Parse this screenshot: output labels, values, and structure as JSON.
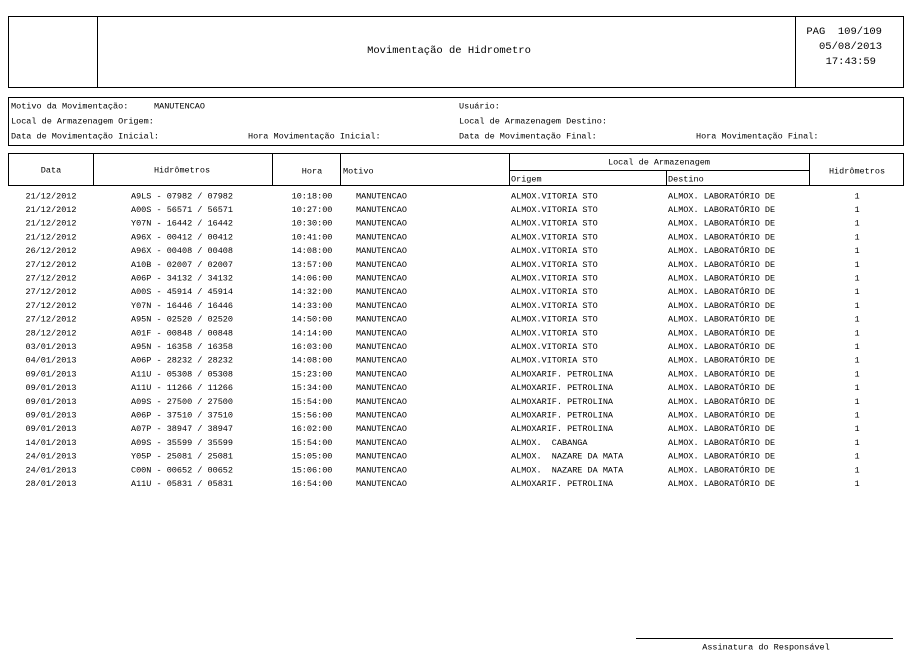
{
  "header": {
    "title": "Movimentação de Hidrometro",
    "page": "PAG  109/109",
    "date": "05/08/2013",
    "time": "17:43:59"
  },
  "filters": {
    "motivo": {
      "label": "Motivo da Movimentação:",
      "value": "MANUTENCAO"
    },
    "usuario": "Usuário:",
    "origem": "Local de Armazenagem Origem:",
    "destino": "Local de Armazenagem Destino:",
    "data_inicial": "Data de Movimentação Inicial:",
    "hora_inicial": "Hora Movimentação Inicial:",
    "data_final": "Data de Movimentação Final:",
    "hora_final": "Hora Movimentação Final:"
  },
  "table": {
    "columns": {
      "data": "Data",
      "hidrometros": "Hidrômetros",
      "hora": "Hora",
      "motivo": "Motivo",
      "local": "Local de Armazenagem",
      "origem": "Origem",
      "destino": "Destino",
      "quantidade": "Hidrômetros"
    },
    "rows": [
      [
        "21/12/2012",
        "A9LS - 07982 / 07982",
        "10:18:00",
        "MANUTENCAO",
        "ALMOX.VITORIA STO",
        "ALMOX. LABORATÓRIO DE",
        "1"
      ],
      [
        "21/12/2012",
        "A00S - 56571 / 56571",
        "10:27:00",
        "MANUTENCAO",
        "ALMOX.VITORIA STO",
        "ALMOX. LABORATÓRIO DE",
        "1"
      ],
      [
        "21/12/2012",
        "Y07N - 16442 / 16442",
        "10:30:00",
        "MANUTENCAO",
        "ALMOX.VITORIA STO",
        "ALMOX. LABORATÓRIO DE",
        "1"
      ],
      [
        "21/12/2012",
        "A96X - 00412 / 00412",
        "10:41:00",
        "MANUTENCAO",
        "ALMOX.VITORIA STO",
        "ALMOX. LABORATÓRIO DE",
        "1"
      ],
      [
        "26/12/2012",
        "A96X - 00408 / 00408",
        "14:08:00",
        "MANUTENCAO",
        "ALMOX.VITORIA STO",
        "ALMOX. LABORATÓRIO DE",
        "1"
      ],
      [
        "27/12/2012",
        "A10B - 02007 / 02007",
        "13:57:00",
        "MANUTENCAO",
        "ALMOX.VITORIA STO",
        "ALMOX. LABORATÓRIO DE",
        "1"
      ],
      [
        "27/12/2012",
        "A06P - 34132 / 34132",
        "14:06:00",
        "MANUTENCAO",
        "ALMOX.VITORIA STO",
        "ALMOX. LABORATÓRIO DE",
        "1"
      ],
      [
        "27/12/2012",
        "A00S - 45914 / 45914",
        "14:32:00",
        "MANUTENCAO",
        "ALMOX.VITORIA STO",
        "ALMOX. LABORATÓRIO DE",
        "1"
      ],
      [
        "27/12/2012",
        "Y07N - 16446 / 16446",
        "14:33:00",
        "MANUTENCAO",
        "ALMOX.VITORIA STO",
        "ALMOX. LABORATÓRIO DE",
        "1"
      ],
      [
        "27/12/2012",
        "A95N - 02520 / 02520",
        "14:50:00",
        "MANUTENCAO",
        "ALMOX.VITORIA STO",
        "ALMOX. LABORATÓRIO DE",
        "1"
      ],
      [
        "28/12/2012",
        "A01F - 00848 / 00848",
        "14:14:00",
        "MANUTENCAO",
        "ALMOX.VITORIA STO",
        "ALMOX. LABORATÓRIO DE",
        "1"
      ],
      [
        "03/01/2013",
        "A95N - 16358 / 16358",
        "16:03:00",
        "MANUTENCAO",
        "ALMOX.VITORIA STO",
        "ALMOX. LABORATÓRIO DE",
        "1"
      ],
      [
        "04/01/2013",
        "A06P - 28232 / 28232",
        "14:08:00",
        "MANUTENCAO",
        "ALMOX.VITORIA STO",
        "ALMOX. LABORATÓRIO DE",
        "1"
      ],
      [
        "09/01/2013",
        "A11U - 05308 / 05308",
        "15:23:00",
        "MANUTENCAO",
        "ALMOXARIF. PETROLINA",
        "ALMOX. LABORATÓRIO DE",
        "1"
      ],
      [
        "09/01/2013",
        "A11U - 11266 / 11266",
        "15:34:00",
        "MANUTENCAO",
        "ALMOXARIF. PETROLINA",
        "ALMOX. LABORATÓRIO DE",
        "1"
      ],
      [
        "09/01/2013",
        "A09S - 27500 / 27500",
        "15:54:00",
        "MANUTENCAO",
        "ALMOXARIF. PETROLINA",
        "ALMOX. LABORATÓRIO DE",
        "1"
      ],
      [
        "09/01/2013",
        "A06P - 37510 / 37510",
        "15:56:00",
        "MANUTENCAO",
        "ALMOXARIF. PETROLINA",
        "ALMOX. LABORATÓRIO DE",
        "1"
      ],
      [
        "09/01/2013",
        "A07P - 38947 / 38947",
        "16:02:00",
        "MANUTENCAO",
        "ALMOXARIF. PETROLINA",
        "ALMOX. LABORATÓRIO DE",
        "1"
      ],
      [
        "14/01/2013",
        "A09S - 35599 / 35599",
        "15:54:00",
        "MANUTENCAO",
        "ALMOX.  CABANGA",
        "ALMOX. LABORATÓRIO DE",
        "1"
      ],
      [
        "24/01/2013",
        "Y05P - 25081 / 25081",
        "15:05:00",
        "MANUTENCAO",
        "ALMOX.  NAZARE DA MATA",
        "ALMOX. LABORATÓRIO DE",
        "1"
      ],
      [
        "24/01/2013",
        "C00N - 00652 / 00652",
        "15:06:00",
        "MANUTENCAO",
        "ALMOX.  NAZARE DA MATA",
        "ALMOX. LABORATÓRIO DE",
        "1"
      ],
      [
        "28/01/2013",
        "A11U - 05831 / 05831",
        "16:54:00",
        "MANUTENCAO",
        "ALMOXARIF. PETROLINA",
        "ALMOX. LABORATÓRIO DE",
        "1"
      ]
    ]
  },
  "signature": "Assinatura do Responsável"
}
